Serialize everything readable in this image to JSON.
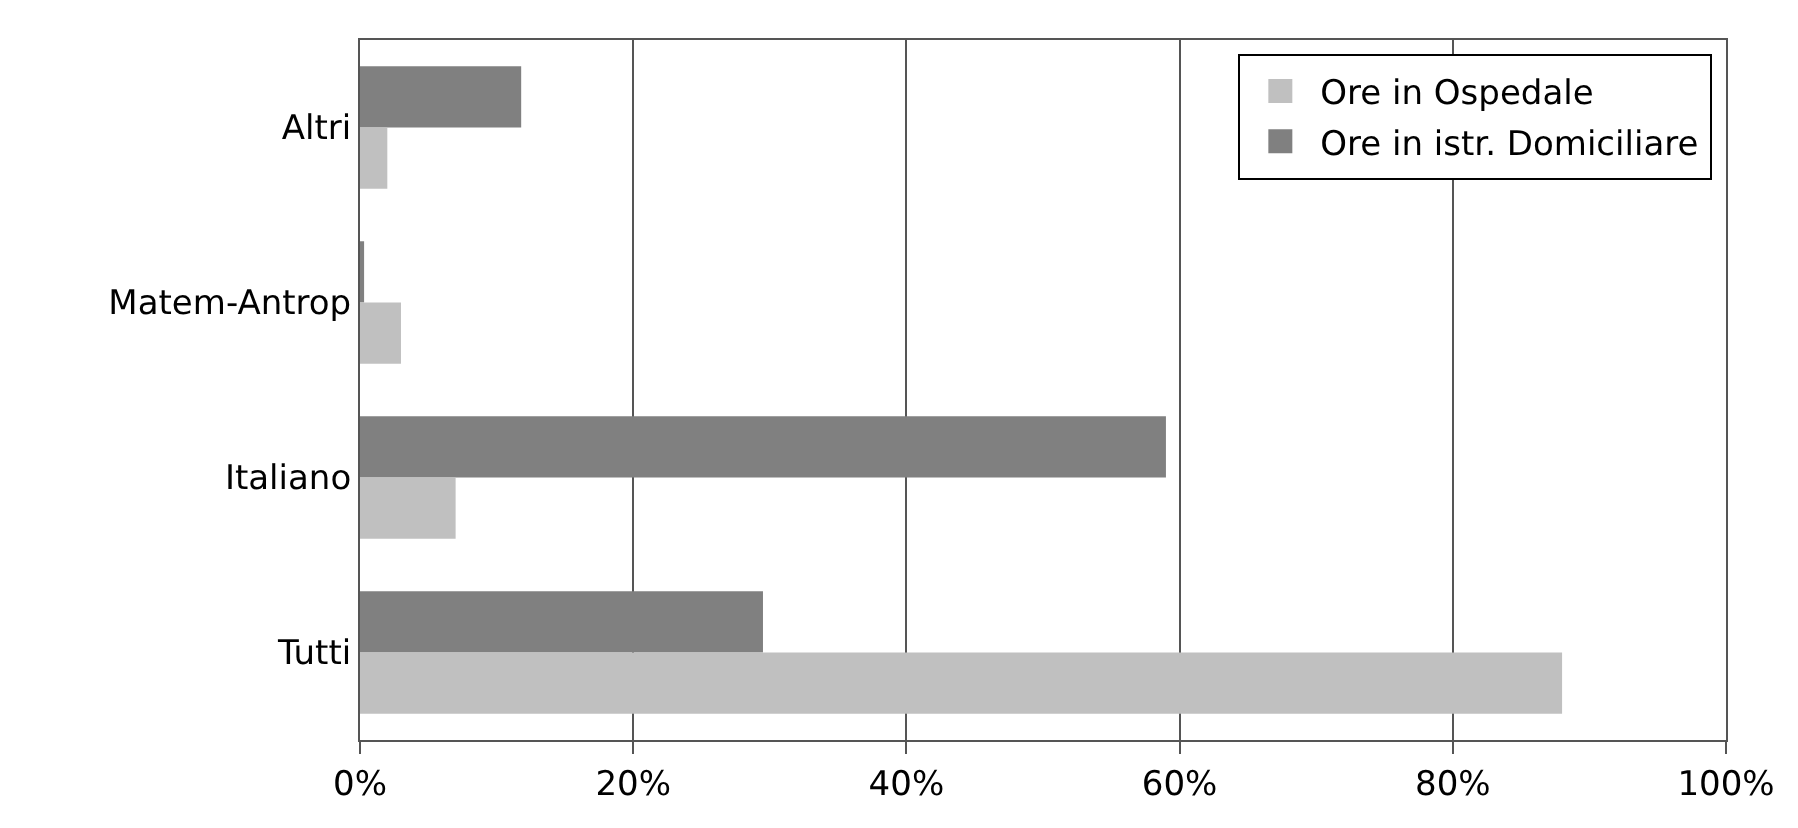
{
  "chart_data": {
    "type": "bar",
    "orientation": "horizontal",
    "categories": [
      "Altri",
      "Matem-Antrop",
      "Italiano",
      "Tutti"
    ],
    "series": [
      {
        "name": "Ore in istr. Domiciliare",
        "color": "#808080",
        "values": [
          11.8,
          0.3,
          59.0,
          29.5
        ]
      },
      {
        "name": "Ore in Ospedale",
        "color": "#c0c0c0",
        "values": [
          2.0,
          3.0,
          7.0,
          88.0
        ]
      }
    ],
    "xlim": [
      0,
      100
    ],
    "xticks": [
      {
        "value": 0,
        "label": "0%"
      },
      {
        "value": 20,
        "label": "20%"
      },
      {
        "value": 40,
        "label": "40%"
      },
      {
        "value": 60,
        "label": "60%"
      },
      {
        "value": 80,
        "label": "80%"
      },
      {
        "value": 100,
        "label": "100%"
      }
    ],
    "grid": "x",
    "legend": "top right"
  }
}
